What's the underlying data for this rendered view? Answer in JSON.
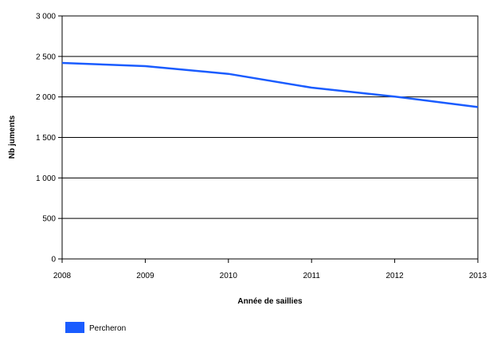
{
  "chart_data": {
    "type": "line",
    "x": [
      2008,
      2009,
      2010,
      2011,
      2012,
      2013
    ],
    "x_tick_labels": [
      "2008",
      "2009",
      "2010",
      "2011",
      "2012",
      "2013"
    ],
    "y_tick_labels": [
      "3 000",
      "2 500",
      "2 000",
      "1 500",
      "1 000",
      "500",
      "0"
    ],
    "y_ticks": [
      3000,
      2500,
      2000,
      1500,
      1000,
      500,
      0
    ],
    "xlabel": "Année de saillies",
    "ylabel": "Nb juments",
    "xlim": [
      2008,
      2013
    ],
    "ylim": [
      0,
      3000
    ],
    "grid": "horizontal",
    "legend_position": "bottom-left",
    "series": [
      {
        "name": "Percheron",
        "color": "#1a5cff",
        "values": [
          2420,
          2380,
          2285,
          2115,
          2005,
          1875
        ]
      }
    ]
  }
}
